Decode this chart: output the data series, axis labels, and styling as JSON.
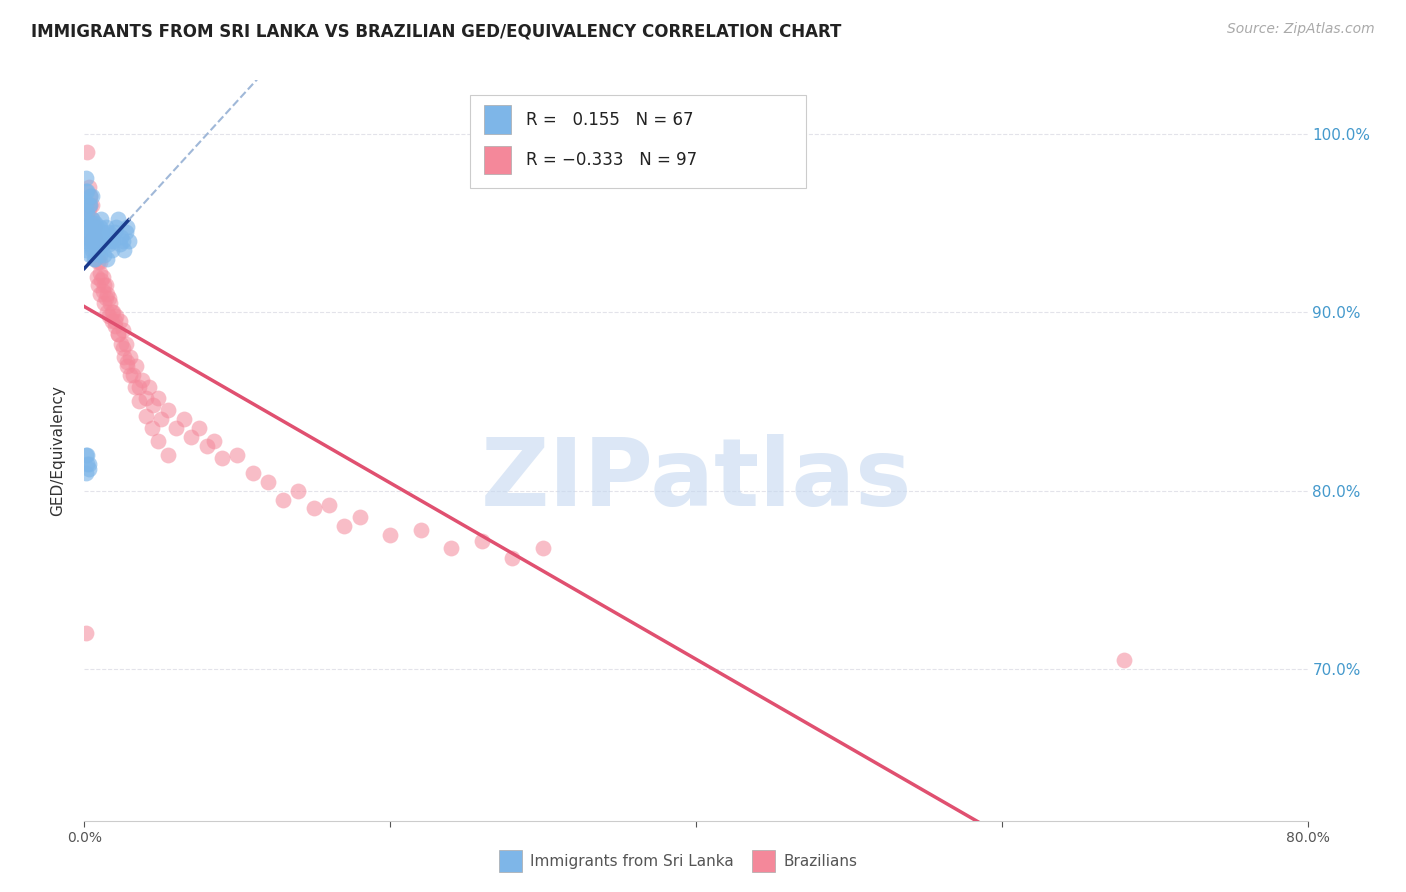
{
  "title": "IMMIGRANTS FROM SRI LANKA VS BRAZILIAN GED/EQUIVALENCY CORRELATION CHART",
  "source": "Source: ZipAtlas.com",
  "ylabel": "GED/Equivalency",
  "yright_ticks": [
    "100.0%",
    "90.0%",
    "80.0%",
    "70.0%"
  ],
  "yright_values": [
    1.0,
    0.9,
    0.8,
    0.7
  ],
  "xlim": [
    0.0,
    0.8
  ],
  "ylim": [
    0.615,
    1.03
  ],
  "sri_lanka_R": 0.155,
  "sri_lanka_N": 67,
  "brazil_R": -0.333,
  "brazil_N": 97,
  "sri_lanka_color": "#7EB6E8",
  "brazil_color": "#F4889A",
  "sri_lanka_line_color": "#1A3A8C",
  "brazil_line_color": "#E05070",
  "dashed_line_color": "#A0B8D8",
  "background_color": "#FFFFFF",
  "grid_color": "#E0E0E8",
  "watermark": "ZIPatlas",
  "watermark_color": "#C5D8F0",
  "title_fontsize": 12,
  "source_fontsize": 10,
  "sri_lanka_x": [
    0.001,
    0.001,
    0.001,
    0.001,
    0.001,
    0.001,
    0.001,
    0.001,
    0.001,
    0.001,
    0.002,
    0.002,
    0.002,
    0.002,
    0.002,
    0.003,
    0.003,
    0.003,
    0.003,
    0.003,
    0.004,
    0.004,
    0.004,
    0.004,
    0.005,
    0.005,
    0.005,
    0.005,
    0.006,
    0.006,
    0.006,
    0.007,
    0.007,
    0.007,
    0.008,
    0.008,
    0.009,
    0.009,
    0.01,
    0.01,
    0.01,
    0.011,
    0.011,
    0.012,
    0.012,
    0.013,
    0.013,
    0.014,
    0.015,
    0.015,
    0.016,
    0.016,
    0.017,
    0.018,
    0.018,
    0.019,
    0.02,
    0.021,
    0.022,
    0.023,
    0.024,
    0.025,
    0.026,
    0.027,
    0.028,
    0.029,
    0.001
  ],
  "sri_lanka_y": [
    0.975,
    0.968,
    0.962,
    0.958,
    0.952,
    0.948,
    0.945,
    0.94,
    0.935,
    0.82,
    0.968,
    0.955,
    0.942,
    0.82,
    0.815,
    0.96,
    0.95,
    0.938,
    0.815,
    0.812,
    0.96,
    0.965,
    0.948,
    0.932,
    0.965,
    0.952,
    0.94,
    0.935,
    0.942,
    0.93,
    0.945,
    0.95,
    0.938,
    0.93,
    0.94,
    0.948,
    0.935,
    0.942,
    0.948,
    0.938,
    0.932,
    0.952,
    0.94,
    0.945,
    0.938,
    0.94,
    0.932,
    0.948,
    0.942,
    0.93,
    0.938,
    0.945,
    0.94,
    0.942,
    0.935,
    0.94,
    0.945,
    0.948,
    0.952,
    0.938,
    0.942,
    0.94,
    0.935,
    0.945,
    0.948,
    0.94,
    0.81
  ],
  "brazil_x": [
    0.001,
    0.002,
    0.002,
    0.003,
    0.003,
    0.004,
    0.004,
    0.005,
    0.005,
    0.005,
    0.006,
    0.006,
    0.007,
    0.007,
    0.008,
    0.008,
    0.009,
    0.009,
    0.01,
    0.01,
    0.011,
    0.012,
    0.013,
    0.013,
    0.014,
    0.015,
    0.015,
    0.016,
    0.017,
    0.018,
    0.019,
    0.02,
    0.021,
    0.022,
    0.023,
    0.024,
    0.025,
    0.026,
    0.027,
    0.028,
    0.03,
    0.032,
    0.034,
    0.036,
    0.038,
    0.04,
    0.042,
    0.045,
    0.048,
    0.05,
    0.055,
    0.06,
    0.065,
    0.07,
    0.075,
    0.08,
    0.085,
    0.09,
    0.1,
    0.11,
    0.12,
    0.13,
    0.14,
    0.15,
    0.16,
    0.17,
    0.18,
    0.2,
    0.22,
    0.24,
    0.26,
    0.28,
    0.3,
    0.003,
    0.004,
    0.005,
    0.006,
    0.007,
    0.008,
    0.009,
    0.01,
    0.012,
    0.014,
    0.016,
    0.018,
    0.02,
    0.022,
    0.025,
    0.028,
    0.03,
    0.033,
    0.036,
    0.04,
    0.044,
    0.048,
    0.055,
    0.68
  ],
  "brazil_y": [
    0.72,
    0.99,
    0.955,
    0.97,
    0.945,
    0.96,
    0.94,
    0.96,
    0.94,
    0.952,
    0.935,
    0.948,
    0.942,
    0.93,
    0.938,
    0.92,
    0.928,
    0.915,
    0.922,
    0.91,
    0.918,
    0.912,
    0.905,
    0.915,
    0.908,
    0.9,
    0.91,
    0.898,
    0.905,
    0.895,
    0.9,
    0.892,
    0.898,
    0.888,
    0.895,
    0.882,
    0.89,
    0.875,
    0.882,
    0.87,
    0.875,
    0.865,
    0.87,
    0.858,
    0.862,
    0.852,
    0.858,
    0.848,
    0.852,
    0.84,
    0.845,
    0.835,
    0.84,
    0.83,
    0.835,
    0.825,
    0.828,
    0.818,
    0.82,
    0.81,
    0.805,
    0.795,
    0.8,
    0.79,
    0.792,
    0.78,
    0.785,
    0.775,
    0.778,
    0.768,
    0.772,
    0.762,
    0.768,
    0.958,
    0.965,
    0.95,
    0.942,
    0.948,
    0.938,
    0.932,
    0.928,
    0.92,
    0.915,
    0.908,
    0.9,
    0.895,
    0.888,
    0.88,
    0.872,
    0.865,
    0.858,
    0.85,
    0.842,
    0.835,
    0.828,
    0.82,
    0.705
  ]
}
